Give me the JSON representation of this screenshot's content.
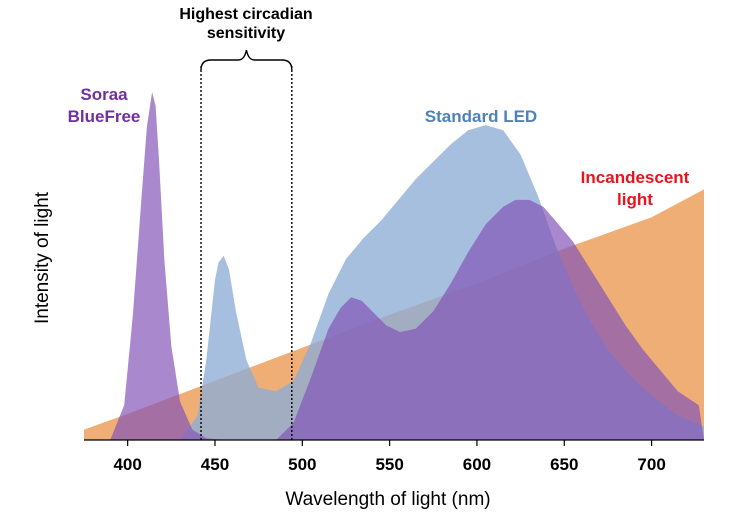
{
  "chart_data": {
    "type": "area",
    "title": "",
    "xlabel": "Wavelength of light (nm)",
    "ylabel": "Intensity of light",
    "xlim": [
      375,
      730
    ],
    "ylim": [
      0,
      100
    ],
    "xticks": [
      400,
      450,
      500,
      550,
      600,
      650,
      700
    ],
    "grid": false,
    "legend": "none",
    "annotations": {
      "bracket_label_line1": "Highest circadian",
      "bracket_label_line2": "sensitivity",
      "bracket_range": [
        442,
        494
      ]
    },
    "series": [
      {
        "name": "Incandescent light",
        "label_lines": [
          "Incandescent",
          "light"
        ],
        "color": "#EBA05E",
        "text_color": "#E8141C",
        "opacity": 0.85,
        "x": [
          375,
          400,
          450,
          500,
          550,
          600,
          650,
          700,
          730
        ],
        "y": [
          3,
          7.5,
          17,
          26.5,
          36,
          45,
          55,
          64,
          72
        ]
      },
      {
        "name": "Standard LED",
        "label_lines": [
          "Standard LED"
        ],
        "color": "#8DADD6",
        "text_color": "#4F81BD",
        "opacity": 0.78,
        "x": [
          375,
          430,
          440,
          445,
          450,
          452,
          455,
          458,
          462,
          468,
          475,
          485,
          495,
          505,
          515,
          525,
          535,
          545,
          555,
          565,
          575,
          585,
          595,
          605,
          615,
          625,
          635,
          645,
          655,
          665,
          675,
          685,
          695,
          705,
          715,
          730
        ],
        "y": [
          0,
          0,
          7,
          23,
          46,
          51,
          53,
          49,
          37,
          23,
          15,
          14,
          17,
          28,
          42,
          52,
          58,
          63,
          69,
          75,
          80,
          85,
          89,
          90.5,
          89,
          82,
          70,
          56,
          44,
          34,
          26,
          20,
          15,
          11,
          7,
          4
        ]
      },
      {
        "name": "Soraa BlueFree",
        "label_lines": [
          "Soraa",
          "BlueFree"
        ],
        "color": "#8456B8",
        "text_color": "#7030A0",
        "opacity": 0.7,
        "x": [
          375,
          390,
          398,
          403,
          408,
          411,
          414,
          416,
          418,
          421,
          425,
          430,
          437,
          445,
          455,
          470,
          485,
          495,
          505,
          515,
          522,
          528,
          534,
          540,
          548,
          556,
          565,
          575,
          585,
          595,
          605,
          615,
          622,
          630,
          638,
          645,
          655,
          665,
          675,
          685,
          695,
          705,
          715,
          727,
          730
        ],
        "y": [
          0,
          0,
          10,
          36,
          70,
          90,
          100,
          96,
          80,
          52,
          27,
          11,
          3,
          0.5,
          0,
          0,
          0,
          5,
          18,
          32,
          38,
          41,
          40,
          37,
          33,
          31,
          32,
          37,
          45,
          54,
          62,
          67,
          69,
          69,
          67,
          63,
          57,
          49,
          41,
          33,
          26,
          20,
          14,
          10,
          0
        ]
      }
    ]
  }
}
